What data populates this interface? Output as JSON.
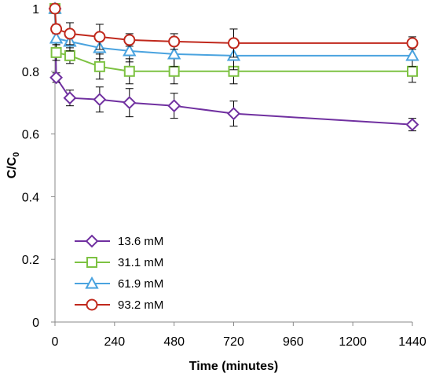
{
  "chart_data": {
    "type": "line",
    "xlabel": "Time (minutes)",
    "ylabel_main": "C/C",
    "ylabel_sub": "0",
    "xlim": [
      0,
      1440
    ],
    "ylim": [
      0,
      1
    ],
    "xticks": [
      0,
      240,
      480,
      720,
      960,
      1200,
      1440
    ],
    "yticks": [
      0,
      0.2,
      0.4,
      0.6,
      0.8,
      1
    ],
    "ytick_labels": [
      "0",
      "0.2",
      "0.4",
      "0.6",
      "0.8",
      "1"
    ],
    "grid": false,
    "legend_position": "bottom-left",
    "series": [
      {
        "name": "13.6 mM",
        "color": "#7030a0",
        "marker": "diamond",
        "x": [
          0,
          5,
          60,
          180,
          300,
          480,
          720,
          1440
        ],
        "y": [
          1.0,
          0.78,
          0.715,
          0.71,
          0.7,
          0.69,
          0.665,
          0.63
        ],
        "err": [
          0,
          0.015,
          0.025,
          0.04,
          0.045,
          0.04,
          0.04,
          0.02
        ]
      },
      {
        "name": "31.1 mM",
        "color": "#7dc242",
        "marker": "square",
        "x": [
          0,
          5,
          60,
          180,
          300,
          480,
          720,
          1440
        ],
        "y": [
          1.0,
          0.86,
          0.85,
          0.815,
          0.8,
          0.8,
          0.8,
          0.8
        ],
        "err": [
          0,
          0.025,
          0.025,
          0.04,
          0.04,
          0.04,
          0.04,
          0.035
        ]
      },
      {
        "name": "61.9 mM",
        "color": "#4aa3df",
        "marker": "triangle",
        "x": [
          0,
          5,
          60,
          180,
          300,
          480,
          720,
          1440
        ],
        "y": [
          1.0,
          0.905,
          0.895,
          0.875,
          0.865,
          0.855,
          0.85,
          0.85
        ],
        "err": [
          0,
          0.02,
          0.03,
          0.035,
          0.035,
          0.04,
          0.045,
          0.035
        ]
      },
      {
        "name": "93.2 mM",
        "color": "#c0281c",
        "marker": "circle",
        "x": [
          0,
          5,
          60,
          180,
          300,
          480,
          720,
          1440
        ],
        "y": [
          1.0,
          0.935,
          0.92,
          0.91,
          0.9,
          0.895,
          0.89,
          0.89
        ],
        "err": [
          0,
          0.015,
          0.035,
          0.04,
          0.02,
          0.025,
          0.045,
          0.02
        ]
      }
    ]
  }
}
